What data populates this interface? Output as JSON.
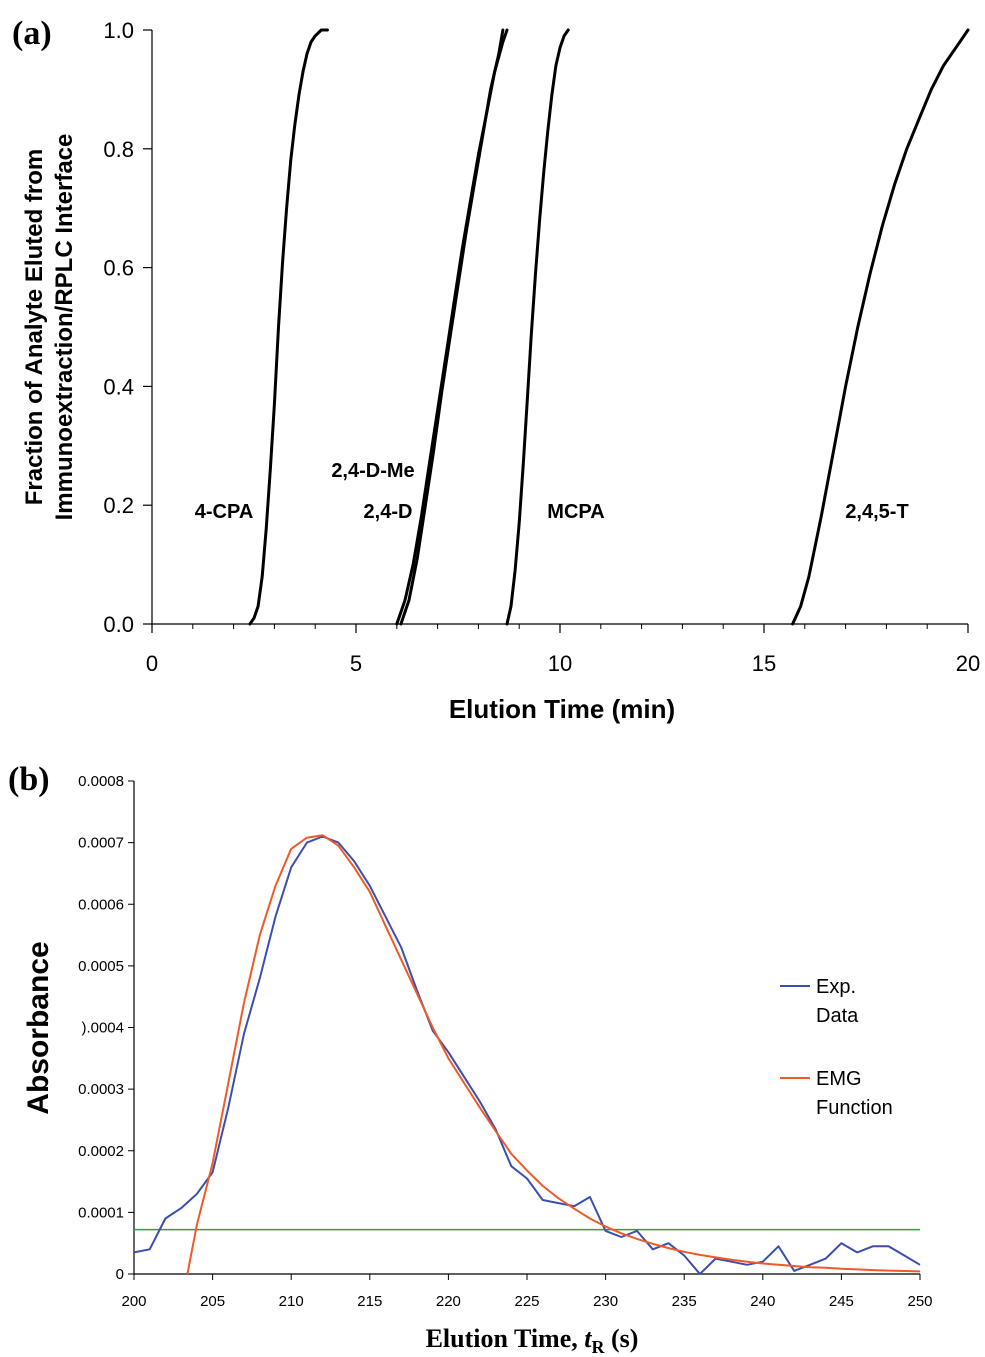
{
  "chart_data": [
    {
      "panel_label": "(a)",
      "type": "line",
      "xlabel": "Elution Time (min)",
      "ylabel_line1": "Fraction of Analyte Eluted from",
      "ylabel_line2": "Immunoextraction/RPLC Interface",
      "xlim": [
        0,
        20
      ],
      "ylim": [
        0.0,
        1.0
      ],
      "x_ticks": [
        "0",
        "5",
        "10",
        "15",
        "20"
      ],
      "y_ticks": [
        "0.0",
        "0.2",
        "0.4",
        "0.6",
        "0.8",
        "1.0"
      ],
      "grid": false,
      "series": [
        {
          "name": "4-CPA",
          "x": [
            2.4,
            2.5,
            2.6,
            2.7,
            2.8,
            2.9,
            3.0,
            3.1,
            3.2,
            3.3,
            3.4,
            3.5,
            3.6,
            3.7,
            3.8,
            3.9,
            4.0,
            4.15,
            4.3
          ],
          "y": [
            0.0,
            0.01,
            0.03,
            0.08,
            0.16,
            0.26,
            0.37,
            0.5,
            0.61,
            0.7,
            0.78,
            0.84,
            0.89,
            0.93,
            0.96,
            0.98,
            0.99,
            1.0,
            1.0
          ]
        },
        {
          "name": "2,4-D-Me",
          "x": [
            6.1,
            6.3,
            6.5,
            6.7,
            6.9,
            7.1,
            7.3,
            7.5,
            7.7,
            7.9,
            8.1,
            8.3,
            8.5,
            8.6
          ],
          "y": [
            0.0,
            0.04,
            0.11,
            0.2,
            0.29,
            0.39,
            0.48,
            0.57,
            0.66,
            0.74,
            0.82,
            0.9,
            0.96,
            1.0
          ]
        },
        {
          "name": "2,4-D",
          "x": [
            6.0,
            6.2,
            6.4,
            6.6,
            6.8,
            7.0,
            7.2,
            7.4,
            7.6,
            7.8,
            8.0,
            8.2,
            8.4,
            8.6,
            8.7
          ],
          "y": [
            0.0,
            0.04,
            0.1,
            0.18,
            0.27,
            0.36,
            0.45,
            0.54,
            0.63,
            0.71,
            0.79,
            0.86,
            0.93,
            0.98,
            1.0
          ]
        },
        {
          "name": "MCPA",
          "x": [
            8.7,
            8.8,
            8.9,
            9.0,
            9.1,
            9.2,
            9.3,
            9.4,
            9.5,
            9.6,
            9.7,
            9.8,
            9.9,
            10.0,
            10.1,
            10.2
          ],
          "y": [
            0.0,
            0.03,
            0.09,
            0.17,
            0.27,
            0.38,
            0.49,
            0.59,
            0.68,
            0.76,
            0.83,
            0.89,
            0.94,
            0.97,
            0.99,
            1.0
          ]
        },
        {
          "name": "2,4,5-T",
          "x": [
            15.7,
            15.9,
            16.1,
            16.4,
            16.7,
            17.0,
            17.3,
            17.6,
            17.9,
            18.2,
            18.5,
            18.8,
            19.1,
            19.4,
            19.7,
            20.0
          ],
          "y": [
            0.0,
            0.03,
            0.08,
            0.18,
            0.29,
            0.4,
            0.5,
            0.59,
            0.67,
            0.74,
            0.8,
            0.85,
            0.9,
            0.94,
            0.97,
            1.0
          ]
        }
      ]
    },
    {
      "panel_label": "(b)",
      "type": "line",
      "xlabel_main": "Elution Time, ",
      "xlabel_var": "t",
      "xlabel_sub": "R",
      "xlabel_unit": " (s)",
      "ylabel": "Absorbance",
      "xlim": [
        200,
        250
      ],
      "ylim": [
        0,
        0.0008
      ],
      "x_ticks": [
        "200",
        "205",
        "210",
        "215",
        "220",
        "225",
        "230",
        "235",
        "240",
        "245",
        "250"
      ],
      "y_ticks": [
        "0",
        "0.0001",
        "0.0002",
        "0.0003",
        ").0004",
        "0.0005",
        "0.0006",
        "0.0007",
        "0.0008"
      ],
      "grid": false,
      "legend_position": "right",
      "threshold_line": {
        "y": 7.2e-05,
        "color": "#2e9e4a"
      },
      "series": [
        {
          "name": "Exp.\nData",
          "color": "#3b4fb0",
          "x": [
            200,
            201,
            202,
            203,
            204,
            205,
            206,
            207,
            208,
            209,
            210,
            211,
            212,
            213,
            214,
            215,
            216,
            217,
            218,
            219,
            220,
            221,
            222,
            223,
            224,
            225,
            226,
            227,
            228,
            229,
            230,
            231,
            232,
            233,
            234,
            235,
            236,
            237,
            238,
            239,
            240,
            241,
            242,
            243,
            244,
            245,
            246,
            247,
            248,
            249,
            250
          ],
          "y": [
            3.5e-05,
            4e-05,
            9e-05,
            0.000107,
            0.00013,
            0.000165,
            0.00027,
            0.00039,
            0.00048,
            0.00058,
            0.00066,
            0.0007,
            0.00071,
            0.0007,
            0.00067,
            0.00063,
            0.00058,
            0.00053,
            0.00046,
            0.000395,
            0.00036,
            0.00032,
            0.00028,
            0.000235,
            0.000175,
            0.000155,
            0.00012,
            0.000115,
            0.00011,
            0.000125,
            7e-05,
            6e-05,
            7e-05,
            4e-05,
            5e-05,
            3e-05,
            -1e-05,
            2.5e-05,
            2e-05,
            1.5e-05,
            2e-05,
            4.5e-05,
            5e-06,
            1.5e-05,
            2.5e-05,
            5e-05,
            3.5e-05,
            4.5e-05,
            4.5e-05,
            3e-05,
            1.5e-05
          ]
        },
        {
          "name": "EMG\nFunction",
          "color": "#f05a28",
          "x": [
            203.4,
            204,
            205,
            206,
            207,
            208,
            209,
            210,
            211,
            212,
            213,
            214,
            215,
            216,
            217,
            218,
            219,
            220,
            221,
            222,
            223,
            224,
            225,
            226,
            227,
            228,
            229,
            230,
            231,
            232,
            233,
            234,
            235,
            236,
            237,
            238,
            239,
            240,
            241,
            242,
            243,
            244,
            245,
            246,
            247,
            248,
            249,
            250
          ],
          "y": [
            0.0,
            8e-05,
            0.00018,
            0.00031,
            0.00044,
            0.00055,
            0.00063,
            0.00069,
            0.000708,
            0.000712,
            0.000695,
            0.00066,
            0.00062,
            0.000565,
            0.00051,
            0.000455,
            0.0004,
            0.00035,
            0.00031,
            0.00027,
            0.000232,
            0.000195,
            0.000168,
            0.000143,
            0.000123,
            0.000106,
            9e-05,
            7.7e-05,
            6.6e-05,
            5.7e-05,
            4.9e-05,
            4.2e-05,
            3.6e-05,
            3.1e-05,
            2.7e-05,
            2.3e-05,
            2e-05,
            1.7e-05,
            1.5e-05,
            1.3e-05,
            1.1e-05,
            1e-05,
            8.5e-06,
            7.4e-06,
            6.4e-06,
            5.5e-06,
            4.8e-06,
            4.2e-06
          ]
        }
      ]
    }
  ]
}
